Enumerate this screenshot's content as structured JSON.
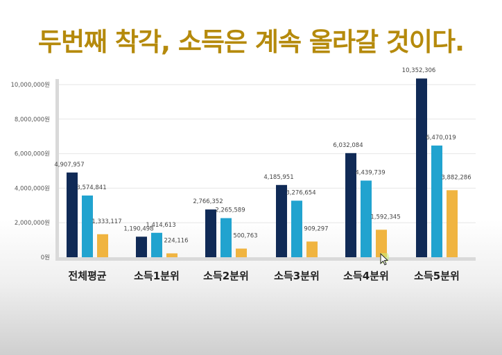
{
  "headline": {
    "text": "두번째 착각, 소득은 계속 올라갈 것이다.",
    "color": "#b58a0c"
  },
  "chart_data": {
    "type": "bar",
    "categories": [
      "전체평균",
      "소득1분위",
      "소득2분위",
      "소득3분위",
      "소득4분위",
      "소득5분위"
    ],
    "series": [
      {
        "values": [
          4907957,
          1190498,
          2766352,
          4185951,
          6032084,
          10352306
        ],
        "labels": [
          "4,907,957",
          "1,190,498",
          "2,766,352",
          "4,185,951",
          "6,032,084",
          "10,352,306"
        ],
        "color": "#102a56"
      },
      {
        "values": [
          3574841,
          1414613,
          2265589,
          3276654,
          4439739,
          6470019
        ],
        "labels": [
          "3,574,841",
          "1,414,613",
          "2,265,589",
          "3,276,654",
          "4,439,739",
          "6,470,019"
        ],
        "color": "#21a3cf"
      },
      {
        "values": [
          1333117,
          224116,
          500763,
          909297,
          1592345,
          3882286
        ],
        "labels": [
          "1,333,117",
          "224,116",
          "500,763",
          "909,297",
          "1,592,345",
          "3,882,286"
        ],
        "color": "#f0b440"
      }
    ],
    "ylim": [
      0,
      10000000
    ],
    "yticks": [
      0,
      2000000,
      4000000,
      6000000,
      8000000,
      10000000
    ],
    "ytick_labels": [
      "0원",
      "2,000,000원",
      "4,000,000원",
      "6,000,000원",
      "8,000,000원",
      "10,000,000원"
    ],
    "grid": true,
    "legend": "none",
    "xlabel": "",
    "ylabel": ""
  }
}
